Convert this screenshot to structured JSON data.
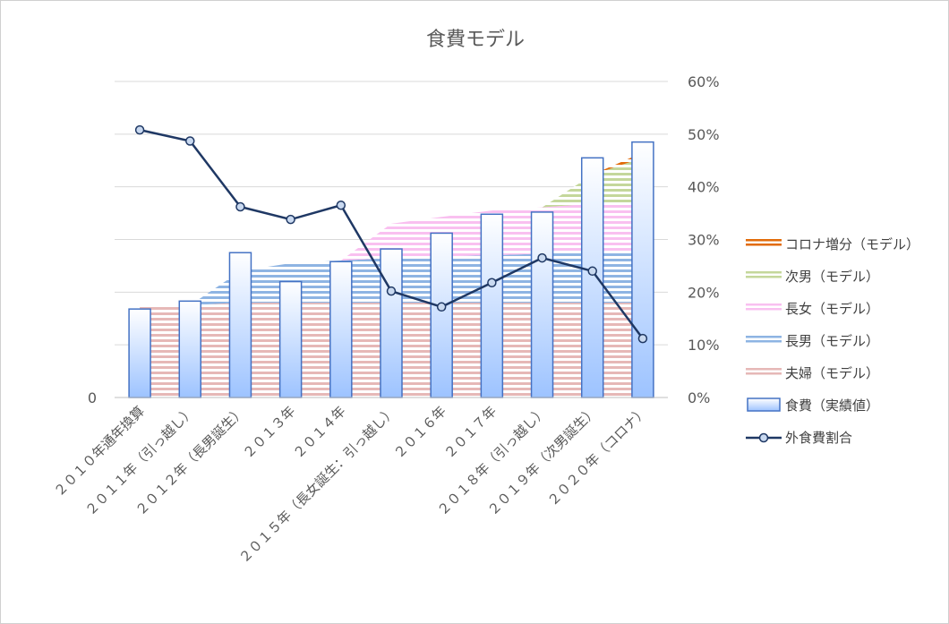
{
  "chart_data": {
    "type": "bar",
    "title": "食費モデル",
    "categories": [
      "２０１０年通年換算",
      "２０１１年（引っ越し）",
      "２０１２年（長男誕生）",
      "２０１３年",
      "２０１４年",
      "２０１５年（長女誕生：引っ越し）",
      "２０１６年",
      "２０１７年",
      "２０１８年（引っ越し）",
      "２０１９年（次男誕生）",
      "２０２０年（コロナ）"
    ],
    "left_axis": {
      "ylim": [
        0,
        60
      ],
      "tick_labels": [
        "0"
      ]
    },
    "right_axis": {
      "ylim": [
        0,
        60
      ],
      "ticks": [
        0,
        10,
        20,
        30,
        40,
        50,
        60
      ],
      "tick_labels": [
        "0%",
        "10%",
        "20%",
        "30%",
        "40%",
        "50%",
        "60%"
      ]
    },
    "grid": true,
    "legend_position": "right",
    "stacked_area_series": [
      {
        "name": "夫婦（モデル）",
        "color": "#e6b8b7",
        "values": [
          17.5,
          17.5,
          18,
          18,
          18,
          18,
          18,
          18,
          18,
          18,
          18
        ]
      },
      {
        "name": "長男（モデル）",
        "color": "#8eb4e3",
        "values": [
          0,
          0,
          6,
          7.5,
          8,
          8.5,
          8.8,
          9,
          9.3,
          9.6,
          9.8
        ]
      },
      {
        "name": "長女（モデル）",
        "color": "#f9c0f0",
        "values": [
          0,
          0,
          0,
          0,
          0,
          6.5,
          7.5,
          8.5,
          8.8,
          9.2,
          9.2
        ]
      },
      {
        "name": "次男（モデル）",
        "color": "#c4d79b",
        "values": [
          0,
          0,
          0,
          0,
          0,
          0,
          0,
          0,
          0,
          5.5,
          8.5
        ]
      },
      {
        "name": "コロナ増分（モデル）",
        "color": "#e26b0a",
        "values": [
          0,
          0,
          0,
          0,
          0,
          0,
          0,
          0,
          0,
          0,
          1
        ]
      }
    ],
    "bar_series": {
      "name": "食費（実績値）",
      "color": "#4472c4",
      "values": [
        16.8,
        18.3,
        27.5,
        22,
        25.8,
        28.2,
        31.2,
        34.8,
        35.2,
        45.5,
        48.5
      ]
    },
    "line_series": {
      "name": "外食費割合",
      "color": "#1f3864",
      "values": [
        50.8,
        48.7,
        36.2,
        33.8,
        36.5,
        20.2,
        17.2,
        21.8,
        26.5,
        24,
        11.2
      ]
    }
  }
}
